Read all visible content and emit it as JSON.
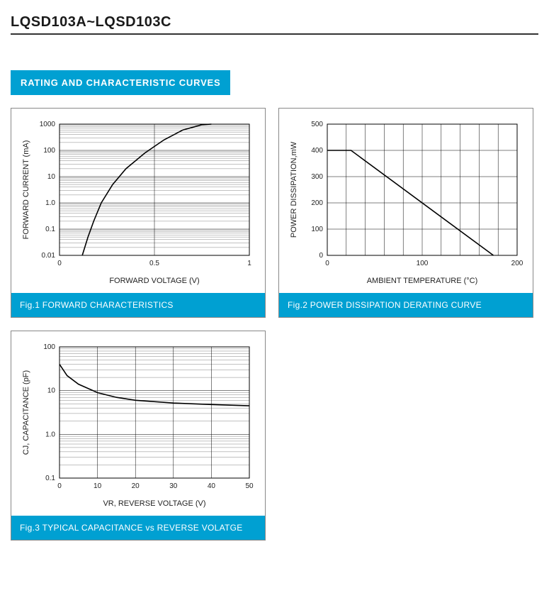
{
  "page_title": "LQSD103A~LQSD103C",
  "section_header": "RATING AND CHARACTERISTIC CURVES",
  "accent_color": "#00a0d2",
  "charts": {
    "fig1": {
      "caption": "Fig.1 FORWARD CHARACTERISTICS",
      "type": "line",
      "xlabel": "FORWARD VOLTAGE (V)",
      "ylabel": "FORWARD CURRENT (mA)",
      "xscale": "linear",
      "yscale": "log",
      "xlim": [
        0,
        1.0
      ],
      "xticks": [
        0,
        0.5,
        1.0
      ],
      "ylim": [
        0.01,
        1000
      ],
      "yticks": [
        0.01,
        0.1,
        1.0,
        10,
        100,
        1000
      ],
      "ytick_labels": [
        "0.01",
        "0.1",
        "1.0",
        "10",
        "100",
        "1000"
      ],
      "data": [
        {
          "x": 0.12,
          "y": 0.01
        },
        {
          "x": 0.15,
          "y": 0.05
        },
        {
          "x": 0.18,
          "y": 0.2
        },
        {
          "x": 0.22,
          "y": 1.0
        },
        {
          "x": 0.28,
          "y": 5.0
        },
        {
          "x": 0.35,
          "y": 20
        },
        {
          "x": 0.45,
          "y": 80
        },
        {
          "x": 0.55,
          "y": 250
        },
        {
          "x": 0.65,
          "y": 600
        },
        {
          "x": 0.75,
          "y": 950
        },
        {
          "x": 0.8,
          "y": 1000
        }
      ],
      "line_color": "#000000",
      "line_width": 1.6,
      "background_color": "#ffffff",
      "grid_color": "#000000"
    },
    "fig2": {
      "caption": "Fig.2 POWER DISSIPATION DERATING CURVE",
      "type": "line",
      "xlabel": "AMBIENT TEMPERATURE (°C)",
      "ylabel": "POWER DISSIPATION,mW",
      "xscale": "linear",
      "yscale": "linear",
      "xlim": [
        0,
        200
      ],
      "xticks": [
        0,
        100,
        200
      ],
      "x_minor_step": 20,
      "ylim": [
        0,
        500
      ],
      "yticks": [
        0,
        100,
        200,
        300,
        400,
        500
      ],
      "data": [
        {
          "x": 0,
          "y": 400
        },
        {
          "x": 25,
          "y": 400
        },
        {
          "x": 175,
          "y": 0
        }
      ],
      "line_color": "#000000",
      "line_width": 1.6,
      "background_color": "#ffffff",
      "grid_color": "#000000"
    },
    "fig3": {
      "caption": "Fig.3  TYPICAL CAPACITANCE vs REVERSE VOLATGE",
      "type": "line",
      "xlabel": "VR, REVERSE VOLTAGE (V)",
      "ylabel": "CJ, CAPACITANCE (pF)",
      "xscale": "linear",
      "yscale": "log",
      "xlim": [
        0,
        50
      ],
      "xticks": [
        0,
        10,
        20,
        30,
        40,
        50
      ],
      "ylim": [
        0.1,
        100
      ],
      "yticks": [
        0.1,
        1.0,
        10,
        100
      ],
      "ytick_labels": [
        "0.1",
        "1.0",
        "10",
        "100"
      ],
      "data": [
        {
          "x": 0,
          "y": 40
        },
        {
          "x": 2,
          "y": 22
        },
        {
          "x": 5,
          "y": 14
        },
        {
          "x": 10,
          "y": 9
        },
        {
          "x": 15,
          "y": 7
        },
        {
          "x": 20,
          "y": 6
        },
        {
          "x": 30,
          "y": 5.2
        },
        {
          "x": 40,
          "y": 4.8
        },
        {
          "x": 50,
          "y": 4.5
        }
      ],
      "line_color": "#000000",
      "line_width": 1.6,
      "background_color": "#ffffff",
      "grid_color": "#000000"
    }
  }
}
